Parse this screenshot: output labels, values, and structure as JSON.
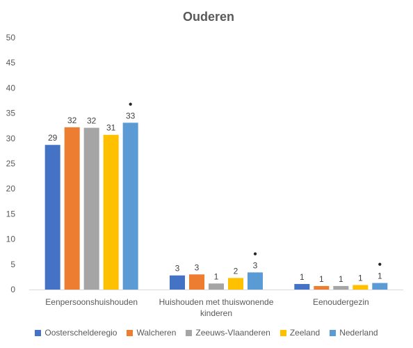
{
  "chart_data": {
    "type": "bar",
    "title": "Ouderen",
    "xlabel": "",
    "ylabel": "",
    "ylim": [
      0,
      50
    ],
    "yticks": [
      0,
      5,
      10,
      15,
      20,
      25,
      30,
      35,
      40,
      45,
      50
    ],
    "grid": false,
    "legend_position": "bottom",
    "categories": [
      [
        "Eenpersoonshuishouden"
      ],
      [
        "Huishouden met thuiswonende",
        "kinderen"
      ],
      [
        "Eenoudergezin"
      ]
    ],
    "series": [
      {
        "name": "Oosterschelderegio",
        "color": "#4472C4",
        "values": [
          28.7,
          2.8,
          1.1
        ],
        "labels": [
          "29",
          "3",
          "1"
        ]
      },
      {
        "name": "Walcheren",
        "color": "#ED7D31",
        "values": [
          32.2,
          3.0,
          0.7
        ],
        "labels": [
          "32",
          "3",
          "1"
        ]
      },
      {
        "name": "Zeeuws-Vlaanderen",
        "color": "#A5A5A5",
        "values": [
          32.1,
          1.2,
          0.7
        ],
        "labels": [
          "32",
          "1",
          "1"
        ]
      },
      {
        "name": "Zeeland",
        "color": "#FFC000",
        "values": [
          30.7,
          2.3,
          0.9
        ],
        "labels": [
          "31",
          "2",
          "1"
        ]
      },
      {
        "name": "Nederland",
        "color": "#5B9BD5",
        "values": [
          33.1,
          3.4,
          1.3
        ],
        "labels": [
          "33",
          "3",
          "1"
        ]
      }
    ],
    "markers": [
      {
        "series": "Nederland",
        "category_index": 0,
        "symbol": "●"
      },
      {
        "series": "Nederland",
        "category_index": 1,
        "symbol": "●"
      },
      {
        "series": "Nederland",
        "category_index": 2,
        "symbol": "●"
      }
    ]
  }
}
